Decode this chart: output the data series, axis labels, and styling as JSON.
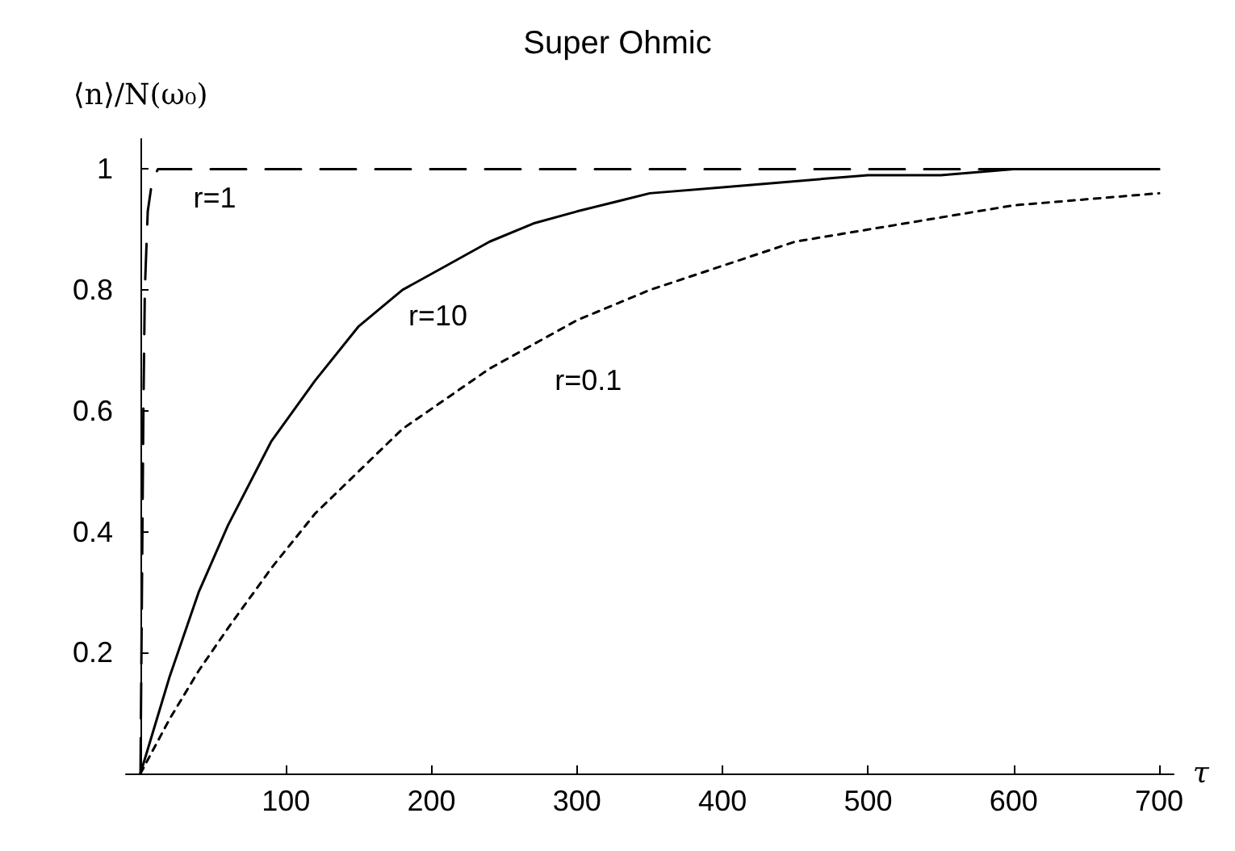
{
  "chart_data": {
    "type": "line",
    "title": "Super Ohmic",
    "xlabel": "τ",
    "ylabel": "⟨n⟩/N(ω₀)",
    "xlim": [
      -10,
      710
    ],
    "xticks": [
      100,
      200,
      300,
      400,
      500,
      600,
      700
    ],
    "ylim": [
      0,
      1.05
    ],
    "yticks": [
      0.2,
      0.4,
      0.6,
      0.8,
      1
    ],
    "grid": false,
    "marker": "none",
    "series": [
      {
        "name": "r=1",
        "color": "#000000",
        "line_style": "dashed",
        "x": [
          0,
          1,
          2,
          3,
          5,
          8,
          12,
          20,
          100,
          200,
          300,
          400,
          500,
          600,
          700
        ],
        "values": [
          0,
          0.3,
          0.6,
          0.8,
          0.93,
          0.98,
          1,
          1,
          1,
          1,
          1,
          1,
          1,
          1,
          1
        ]
      },
      {
        "name": "r=10",
        "color": "#000000",
        "line_style": "solid",
        "x": [
          0,
          20,
          40,
          60,
          90,
          120,
          150,
          180,
          210,
          240,
          270,
          300,
          350,
          400,
          450,
          500,
          550,
          600,
          650,
          700
        ],
        "values": [
          0,
          0.16,
          0.3,
          0.41,
          0.55,
          0.65,
          0.74,
          0.8,
          0.84,
          0.88,
          0.91,
          0.93,
          0.96,
          0.97,
          0.98,
          0.99,
          0.99,
          1,
          1,
          1
        ]
      },
      {
        "name": "r=0.1",
        "color": "#000000",
        "line_style": "dotted",
        "x": [
          0,
          20,
          40,
          60,
          90,
          120,
          150,
          180,
          210,
          240,
          270,
          300,
          350,
          400,
          450,
          500,
          550,
          600,
          650,
          700
        ],
        "values": [
          0,
          0.09,
          0.17,
          0.24,
          0.34,
          0.43,
          0.5,
          0.57,
          0.62,
          0.67,
          0.71,
          0.75,
          0.8,
          0.84,
          0.88,
          0.9,
          0.92,
          0.94,
          0.95,
          0.96
        ]
      }
    ]
  }
}
